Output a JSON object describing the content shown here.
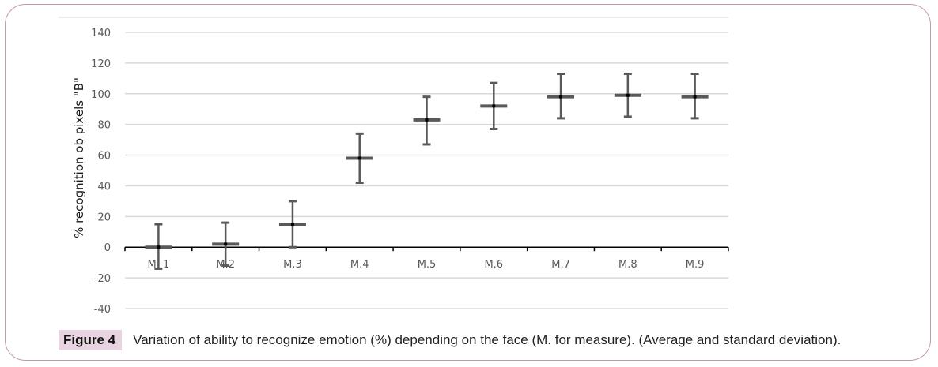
{
  "chart_data": {
    "type": "scatter",
    "subtype": "mean-with-error-bars",
    "categories": [
      "M. 1",
      "M.2",
      "M.3",
      "M.4",
      "M.5",
      "M.6",
      "M.7",
      "M.8",
      "M.9"
    ],
    "series": [
      {
        "name": "Average",
        "values": [
          0,
          2,
          15,
          58,
          83,
          92,
          98,
          99,
          98
        ],
        "upper": [
          15,
          16,
          30,
          74,
          98,
          107,
          113,
          113,
          113
        ],
        "lower": [
          -14,
          -12,
          0,
          42,
          67,
          77,
          84,
          85,
          84
        ]
      }
    ],
    "ylabel": "% recognition ob pixels \"B\"",
    "xlabel": "",
    "ylim": [
      -40,
      140
    ],
    "yticks": [
      140,
      120,
      100,
      80,
      60,
      40,
      20,
      0,
      -20,
      -40
    ],
    "grid": true,
    "colors": {
      "bar": "#595959",
      "marker": "#000000",
      "grid": "#d9d9d9",
      "axis": "#000000",
      "frame": "#c995b6",
      "figure_label_bg": "#e8d3e0"
    }
  },
  "caption": {
    "label": "Figure 4",
    "text": "Variation of ability to recognize emotion (%) depending on the face (M. for measure). (Average and standard deviation)."
  }
}
